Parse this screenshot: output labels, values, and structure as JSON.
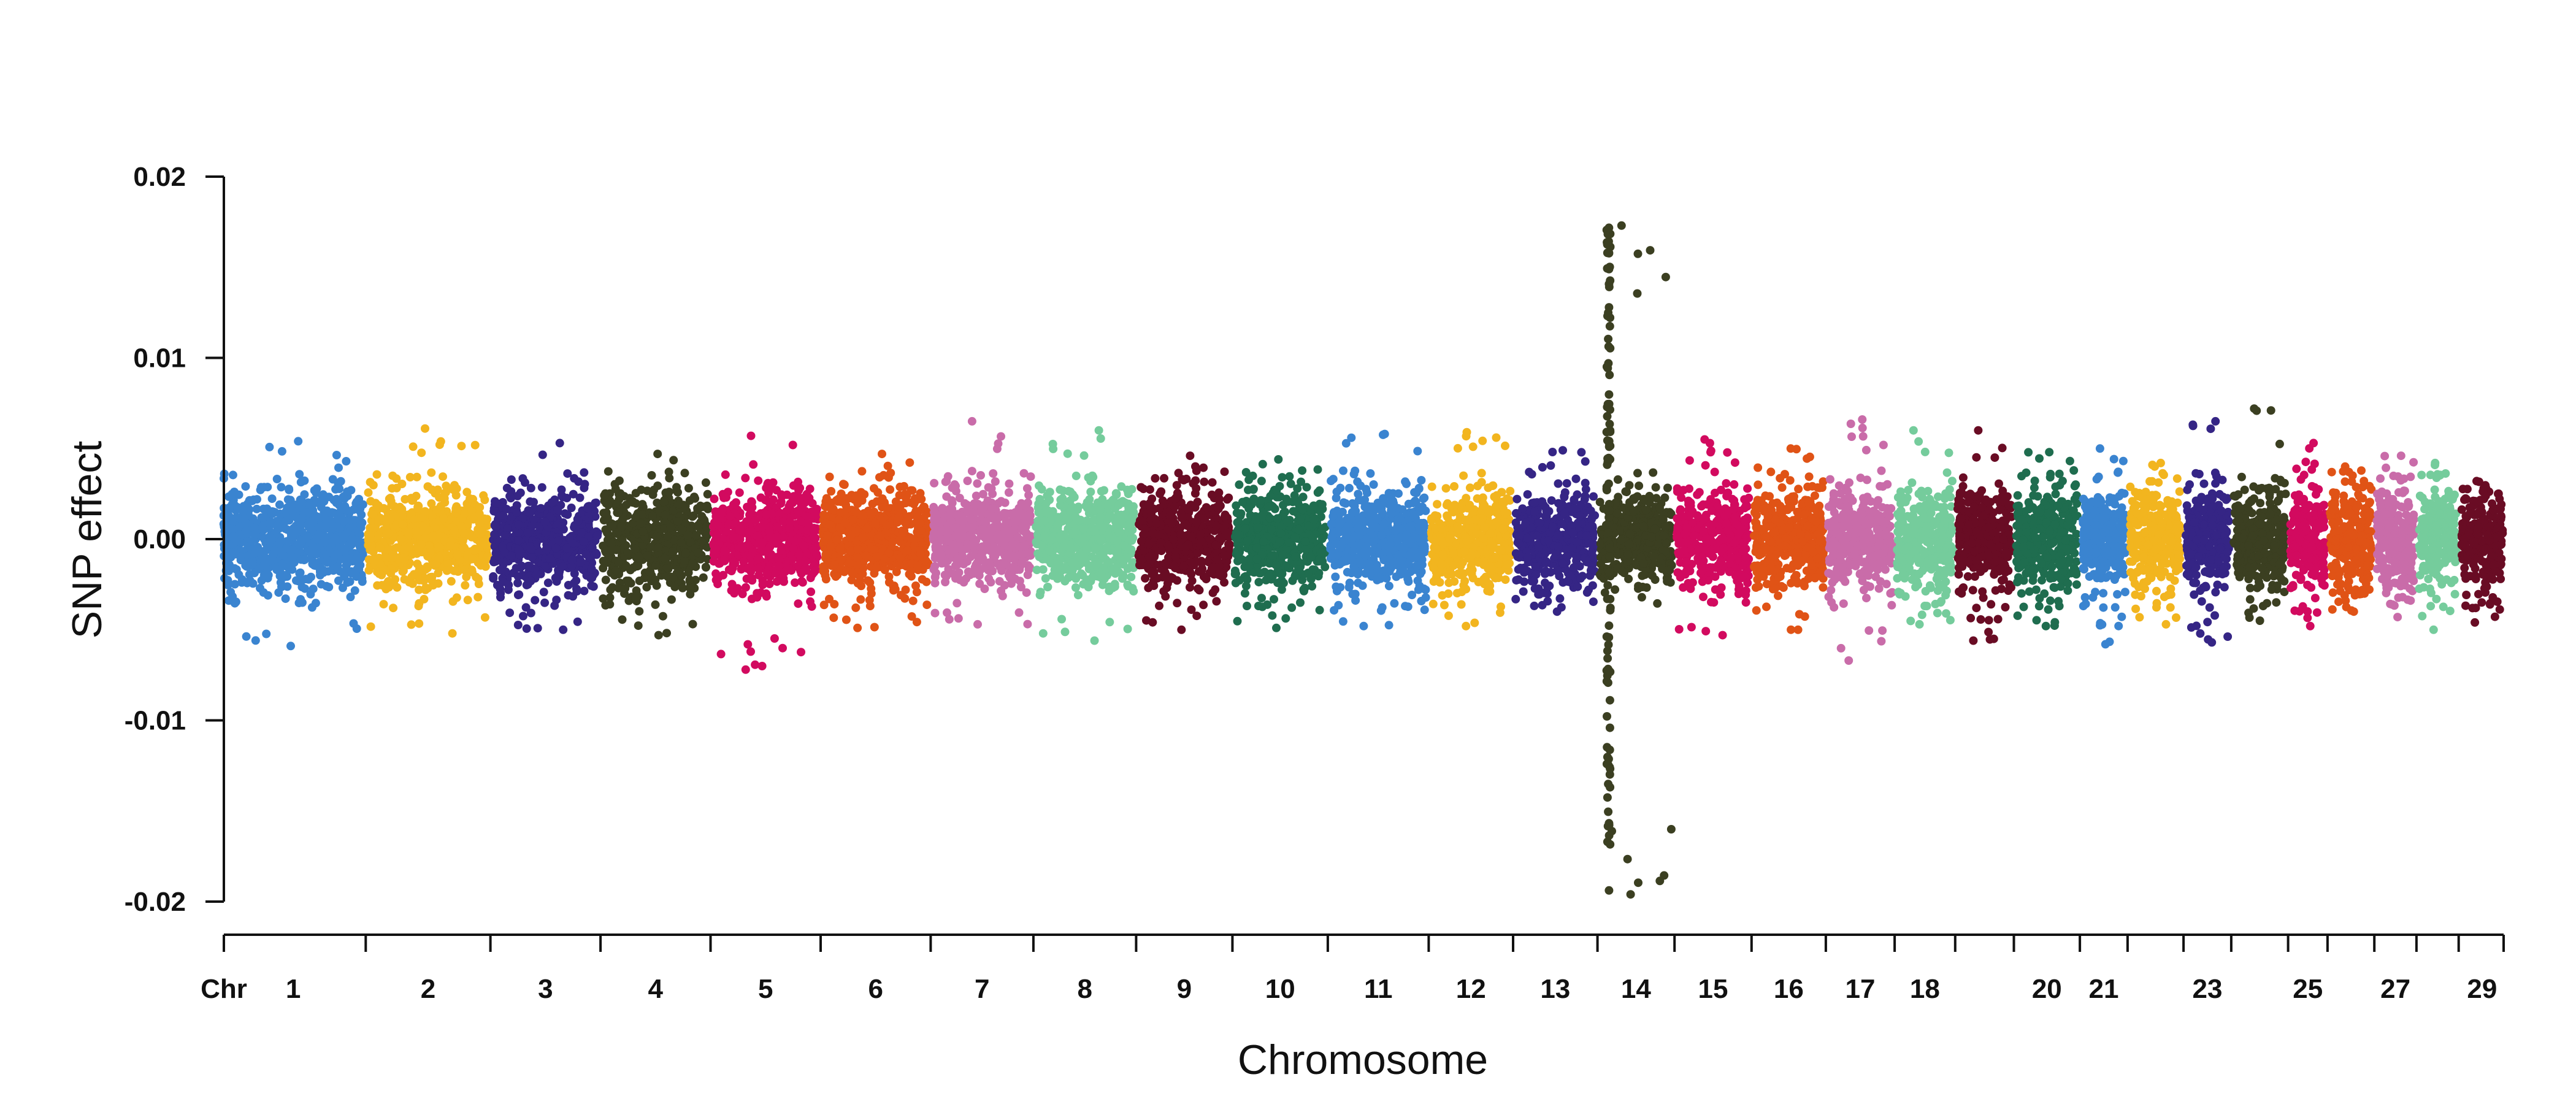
{
  "chart_data": {
    "type": "scatter",
    "subtype": "manhattan",
    "title": "",
    "xlabel": "Chromosome",
    "ylabel": "SNP effect",
    "ylim": [
      -0.02,
      0.02
    ],
    "y_ticks": [
      "0.02",
      "0.01",
      "0.00",
      "-0.01",
      "-0.02"
    ],
    "x_axis_prefix": "Chr",
    "chromosome_labels": [
      "1",
      "2",
      "3",
      "4",
      "5",
      "6",
      "7",
      "8",
      "9",
      "10",
      "11",
      "12",
      "13",
      "14",
      "15",
      "16",
      "17",
      "18",
      "20",
      "21",
      "23",
      "25",
      "27",
      "29"
    ],
    "chromosomes": [
      {
        "chr": 1,
        "color": "#3A84D0",
        "min": -0.0059,
        "max": 0.0054,
        "label": "1"
      },
      {
        "chr": 2,
        "color": "#F2B51F",
        "min": -0.0052,
        "max": 0.0061,
        "label": "2"
      },
      {
        "chr": 3,
        "color": "#352585",
        "min": -0.005,
        "max": 0.0053,
        "label": "3"
      },
      {
        "chr": 4,
        "color": "#3B3F21",
        "min": -0.0053,
        "max": 0.0047,
        "label": "4"
      },
      {
        "chr": 5,
        "color": "#D20A5F",
        "min": -0.0072,
        "max": 0.0057,
        "label": "5"
      },
      {
        "chr": 6,
        "color": "#E05316",
        "min": -0.0049,
        "max": 0.0047,
        "label": "6"
      },
      {
        "chr": 7,
        "color": "#C96CA9",
        "min": -0.0047,
        "max": 0.0065,
        "label": "7"
      },
      {
        "chr": 8,
        "color": "#75CC9C",
        "min": -0.0056,
        "max": 0.006,
        "label": "8"
      },
      {
        "chr": 9,
        "color": "#690C24",
        "min": -0.005,
        "max": 0.0046,
        "label": "9"
      },
      {
        "chr": 10,
        "color": "#1F6D4F",
        "min": -0.0049,
        "max": 0.0044,
        "label": "10"
      },
      {
        "chr": 11,
        "color": "#3A84D0",
        "min": -0.0048,
        "max": 0.0058,
        "label": "11"
      },
      {
        "chr": 12,
        "color": "#F2B51F",
        "min": -0.0048,
        "max": 0.0059,
        "label": "12"
      },
      {
        "chr": 13,
        "color": "#352585",
        "min": -0.004,
        "max": 0.0049,
        "label": "13"
      },
      {
        "chr": 14,
        "color": "#3B3F21",
        "min": -0.0196,
        "max": 0.0173,
        "label": "14"
      },
      {
        "chr": 15,
        "color": "#D20A5F",
        "min": -0.0053,
        "max": 0.0055,
        "label": "15"
      },
      {
        "chr": 16,
        "color": "#E05316",
        "min": -0.005,
        "max": 0.005,
        "label": "16"
      },
      {
        "chr": 17,
        "color": "#C96CA9",
        "min": -0.0067,
        "max": 0.0066,
        "label": "17"
      },
      {
        "chr": 18,
        "color": "#75CC9C",
        "min": -0.0047,
        "max": 0.006,
        "label": "18"
      },
      {
        "chr": 19,
        "color": "#690C24",
        "min": -0.0056,
        "max": 0.006,
        "label": ""
      },
      {
        "chr": 20,
        "color": "#1F6D4F",
        "min": -0.0048,
        "max": 0.0048,
        "label": "20"
      },
      {
        "chr": 21,
        "color": "#3A84D0",
        "min": -0.0058,
        "max": 0.005,
        "label": "21"
      },
      {
        "chr": 22,
        "color": "#F2B51F",
        "min": -0.0047,
        "max": 0.0042,
        "label": ""
      },
      {
        "chr": 23,
        "color": "#352585",
        "min": -0.0057,
        "max": 0.0065,
        "label": "23"
      },
      {
        "chr": 24,
        "color": "#3B3F21",
        "min": -0.0045,
        "max": 0.0072,
        "label": ""
      },
      {
        "chr": 25,
        "color": "#D20A5F",
        "min": -0.0048,
        "max": 0.0053,
        "label": "25"
      },
      {
        "chr": 26,
        "color": "#E05316",
        "min": -0.004,
        "max": 0.004,
        "label": ""
      },
      {
        "chr": 27,
        "color": "#C96CA9",
        "min": -0.0043,
        "max": 0.0046,
        "label": "27"
      },
      {
        "chr": 28,
        "color": "#75CC9C",
        "min": -0.005,
        "max": 0.0042,
        "label": ""
      },
      {
        "chr": 29,
        "color": "#690C24",
        "min": -0.0046,
        "max": 0.0032,
        "label": "29"
      }
    ]
  }
}
